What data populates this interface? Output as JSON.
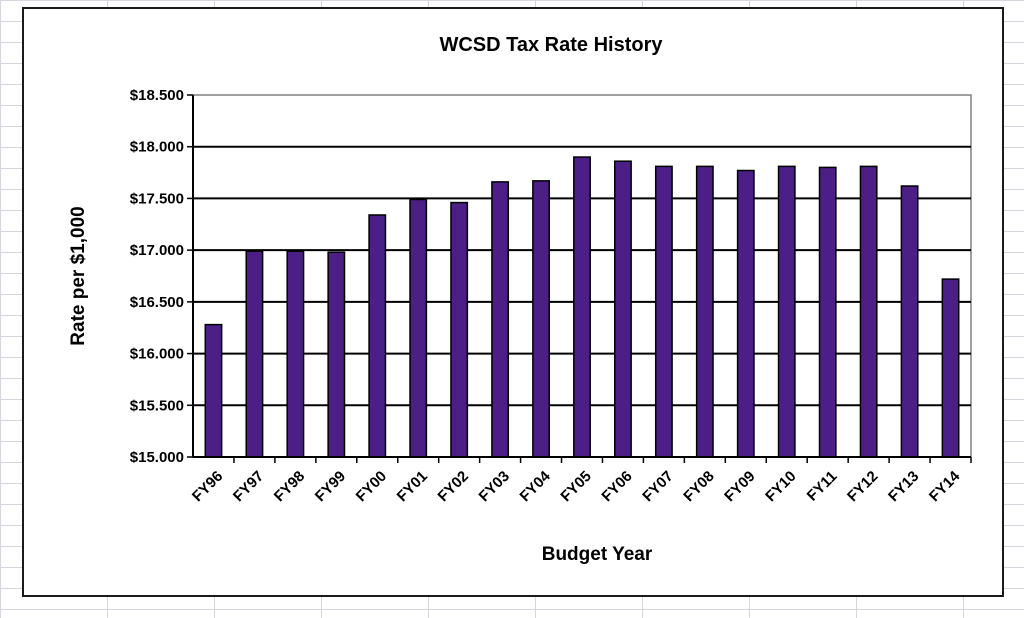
{
  "colors": {
    "bar_fill": "#4b1f86",
    "bar_stroke": "#000000",
    "gridline": "#000000",
    "plot_border": "#808080"
  },
  "chart_data": {
    "type": "bar",
    "title": "WCSD Tax Rate History",
    "xlabel": "Budget Year",
    "ylabel": "Rate per $1,000",
    "categories": [
      "FY96",
      "FY97",
      "FY98",
      "FY99",
      "FY00",
      "FY01",
      "FY02",
      "FY03",
      "FY04",
      "FY05",
      "FY06",
      "FY07",
      "FY08",
      "FY09",
      "FY10",
      "FY11",
      "FY12",
      "FY13",
      "FY14"
    ],
    "values": [
      16.28,
      16.99,
      16.99,
      16.98,
      17.34,
      17.49,
      17.46,
      17.66,
      17.67,
      17.9,
      17.86,
      17.81,
      17.81,
      17.77,
      17.81,
      17.8,
      17.81,
      17.62,
      16.72
    ],
    "ylim": [
      15.0,
      18.5
    ],
    "yticks": [
      15.0,
      15.5,
      16.0,
      16.5,
      17.0,
      17.5,
      18.0,
      18.5
    ],
    "ytick_labels": [
      "$15.000",
      "$15.500",
      "$16.000",
      "$16.500",
      "$17.000",
      "$17.500",
      "$18.000",
      "$18.500"
    ],
    "grid": true,
    "legend": "none"
  }
}
